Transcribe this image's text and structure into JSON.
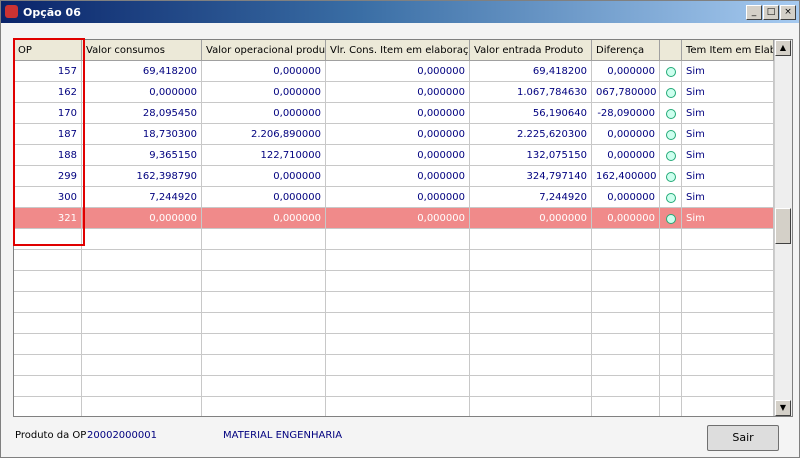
{
  "window": {
    "title": "Opção 06",
    "controls": [
      "_",
      "□",
      "×"
    ]
  },
  "table": {
    "headers": [
      "OP",
      "Valor consumos",
      "Valor operacional produto",
      "Vlr. Cons. Item em elaboração",
      "Valor entrada Produto",
      "Diferença",
      "Tem Item em Elab."
    ],
    "rows": [
      [
        "157",
        "69,418200",
        "0,000000",
        "0,000000",
        "69,418200",
        "0,000000",
        "Sim"
      ],
      [
        "162",
        "0,000000",
        "0,000000",
        "0,000000",
        "1.067,784630",
        "067,780000",
        "Sim"
      ],
      [
        "170",
        "28,095450",
        "0,000000",
        "0,000000",
        "56,190640",
        "-28,090000",
        "Sim"
      ],
      [
        "187",
        "18,730300",
        "2.206,890000",
        "0,000000",
        "2.225,620300",
        "0,000000",
        "Sim"
      ],
      [
        "188",
        "9,365150",
        "122,710000",
        "0,000000",
        "132,075150",
        "0,000000",
        "Sim"
      ],
      [
        "299",
        "162,398790",
        "0,000000",
        "0,000000",
        "324,797140",
        "162,400000",
        "Sim"
      ],
      [
        "300",
        "7,244920",
        "0,000000",
        "0,000000",
        "7,244920",
        "0,000000",
        "Sim"
      ],
      [
        "321",
        "0,000000",
        "0,000000",
        "0,000000",
        "0,000000",
        "0,000000",
        "Sim"
      ]
    ],
    "selected_row": 7
  },
  "footer": {
    "label": "Produto da OP",
    "code": "20002000001",
    "description": "MATERIAL ENGENHARIA",
    "button": "Sair"
  }
}
